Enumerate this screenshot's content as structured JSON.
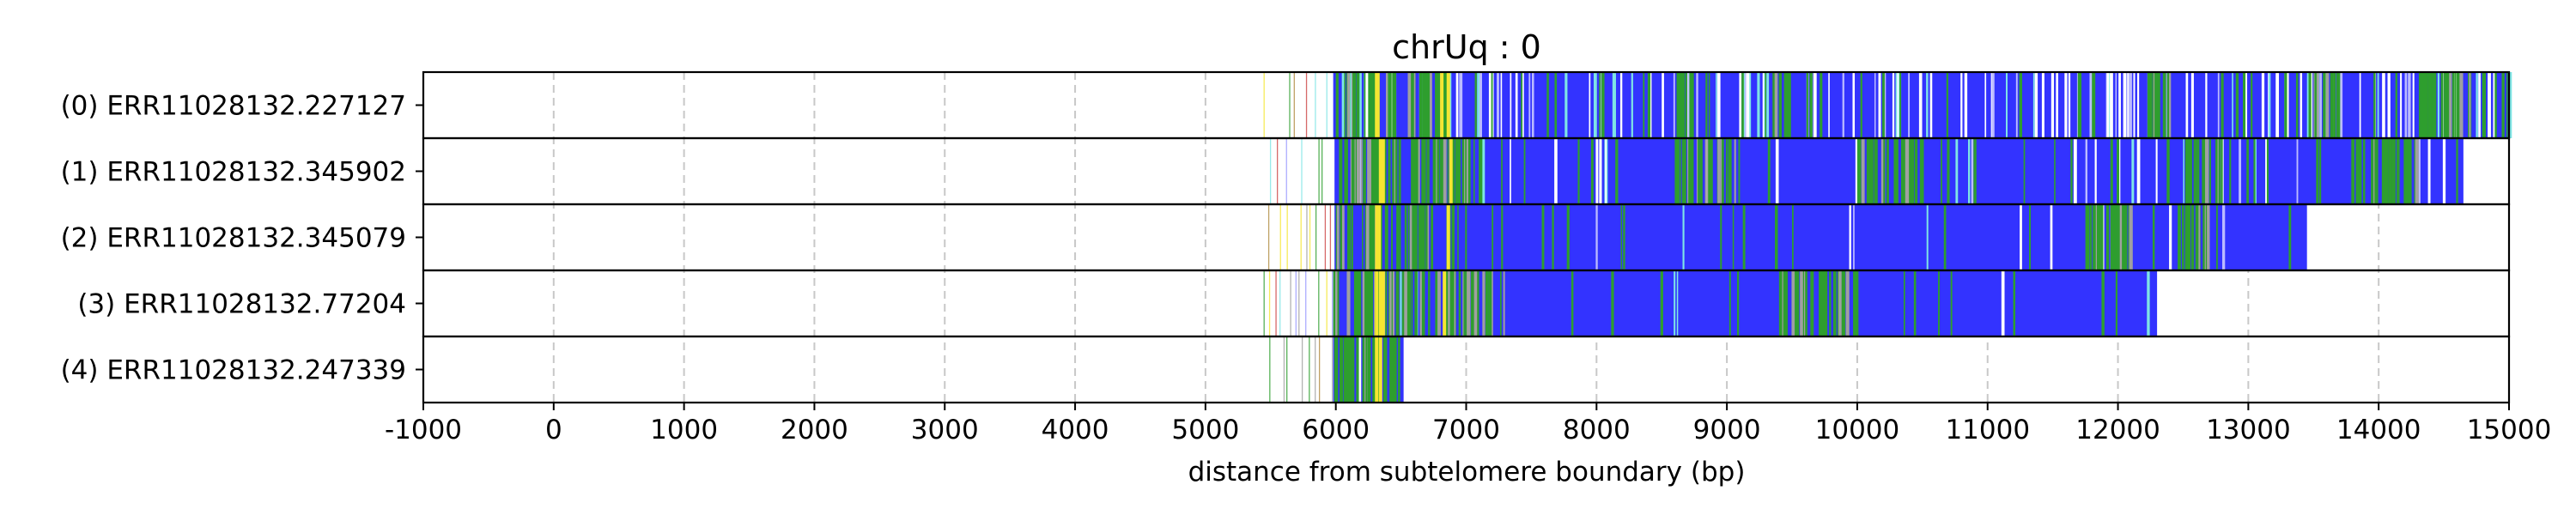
{
  "chart_data": {
    "type": "bar",
    "title": "chrUq : 0",
    "xlabel": "distance from subtelomere boundary (bp)",
    "ylabel": "",
    "xlim": [
      -1000,
      15000
    ],
    "x_ticks": [
      -1000,
      0,
      1000,
      2000,
      3000,
      4000,
      5000,
      6000,
      7000,
      8000,
      9000,
      10000,
      11000,
      12000,
      13000,
      14000,
      15000
    ],
    "x_tick_labels": [
      "-1000",
      "0",
      "1000",
      "2000",
      "3000",
      "4000",
      "5000",
      "6000",
      "7000",
      "8000",
      "9000",
      "10000",
      "11000",
      "12000",
      "13000",
      "14000",
      "15000"
    ],
    "grid": "vertical dashed at x ticks",
    "legend": "none",
    "colors": {
      "main": "#3333ff",
      "green": "#2e9e2e",
      "yellow": "#f5e632",
      "light_blue": "#bbbbff",
      "cyan": "#7fe5e5",
      "gray": "#a0a0a0",
      "red": "#cc4444",
      "brown": "#b08a3e",
      "gridline": "#c8c8c8"
    },
    "reads": [
      {
        "label": "(0) ERR11028132.227127",
        "sparse_start": 5450,
        "dense_start": 5980,
        "end": 15000,
        "light_stripe_density": 0.09,
        "green_stripe_density": 0.035,
        "yellow_positions": [
          6300,
          6310,
          6800,
          6850
        ],
        "green_clusters": [
          [
            6000,
            7000
          ],
          [
            8600,
            8750
          ],
          [
            9350,
            9500
          ],
          [
            12200,
            12400
          ],
          [
            13500,
            13700
          ],
          [
            14300,
            14700
          ]
        ]
      },
      {
        "label": "(1) ERR11028132.345902",
        "sparse_start": 5450,
        "dense_start": 5990,
        "end": 14650,
        "light_stripe_density": 0.035,
        "green_stripe_density": 0.025,
        "yellow_positions": [
          6330,
          6350,
          6870
        ],
        "green_clusters": [
          [
            6000,
            7100
          ],
          [
            8600,
            9100
          ],
          [
            10000,
            10500
          ],
          [
            12500,
            12800
          ],
          [
            13800,
            14300
          ]
        ]
      },
      {
        "label": "(2) ERR11028132.345079",
        "sparse_start": 5450,
        "dense_start": 5990,
        "end": 13450,
        "light_stripe_density": 0.012,
        "green_stripe_density": 0.012,
        "yellow_positions": [
          6300,
          6320,
          6850
        ],
        "green_clusters": [
          [
            6000,
            7000
          ],
          [
            11750,
            12100
          ],
          [
            12450,
            12800
          ]
        ]
      },
      {
        "label": "(3) ERR11028132.77204",
        "sparse_start": 5450,
        "dense_start": 5970,
        "end": 12300,
        "light_stripe_density": 0.012,
        "green_stripe_density": 0.015,
        "yellow_positions": [
          6300,
          6330,
          6350,
          6820
        ],
        "green_clusters": [
          [
            5980,
            7300
          ],
          [
            9400,
            10000
          ]
        ]
      },
      {
        "label": "(4) ERR11028132.247339",
        "sparse_start": 5450,
        "dense_start": 5980,
        "end": 6520,
        "light_stripe_density": 0.02,
        "green_stripe_density": 0.06,
        "yellow_positions": [
          6300,
          6330
        ],
        "green_clusters": [
          [
            5980,
            6500
          ]
        ]
      }
    ]
  }
}
